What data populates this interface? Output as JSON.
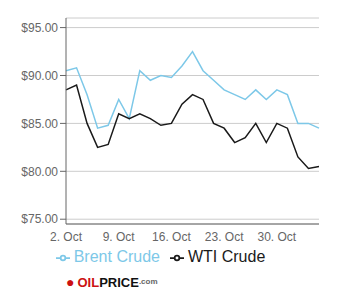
{
  "chart_data": {
    "type": "line",
    "categories": [
      "2. Oct",
      null,
      null,
      null,
      null,
      "9. Oct",
      null,
      null,
      null,
      null,
      "16. Oct",
      null,
      null,
      null,
      null,
      "23. Oct",
      null,
      null,
      null,
      null,
      "30. Oct",
      null,
      null,
      null,
      null
    ],
    "series": [
      {
        "name": "Brent Crude",
        "color": "#7DC8E8",
        "values": [
          90.5,
          90.8,
          88.0,
          84.5,
          84.8,
          87.5,
          85.5,
          90.5,
          89.5,
          90.0,
          89.8,
          91.0,
          92.5,
          90.5,
          89.5,
          88.5,
          88.0,
          87.5,
          88.5,
          87.5,
          88.5,
          88.0,
          85.0,
          85.0,
          84.5
        ]
      },
      {
        "name": "WTI Crude",
        "color": "#1A1A1A",
        "values": [
          88.5,
          89.0,
          85.0,
          82.5,
          82.8,
          86.0,
          85.5,
          86.0,
          85.5,
          84.8,
          85.0,
          87.0,
          88.0,
          87.5,
          85.0,
          84.5,
          83.0,
          83.5,
          85.0,
          83.0,
          85.0,
          84.5,
          81.5,
          80.3,
          80.5
        ]
      }
    ],
    "ylim": [
      74.5,
      96.0
    ],
    "yticks": [
      {
        "value": 75.0,
        "label": "$75.00"
      },
      {
        "value": 80.0,
        "label": "$80.00"
      },
      {
        "value": 85.0,
        "label": "$85.00"
      },
      {
        "value": 90.0,
        "label": "$90.00"
      },
      {
        "value": 95.0,
        "label": "$95.00"
      }
    ],
    "grid": true,
    "legend": "bottom",
    "annotations": [
      {
        "text": "●",
        "color": "#CC1111"
      },
      {
        "text": "OIL",
        "color": "#CC1111"
      },
      {
        "text": "PRICE",
        "color": "#111111"
      },
      {
        "text": ".com",
        "color": "#666666"
      }
    ]
  }
}
